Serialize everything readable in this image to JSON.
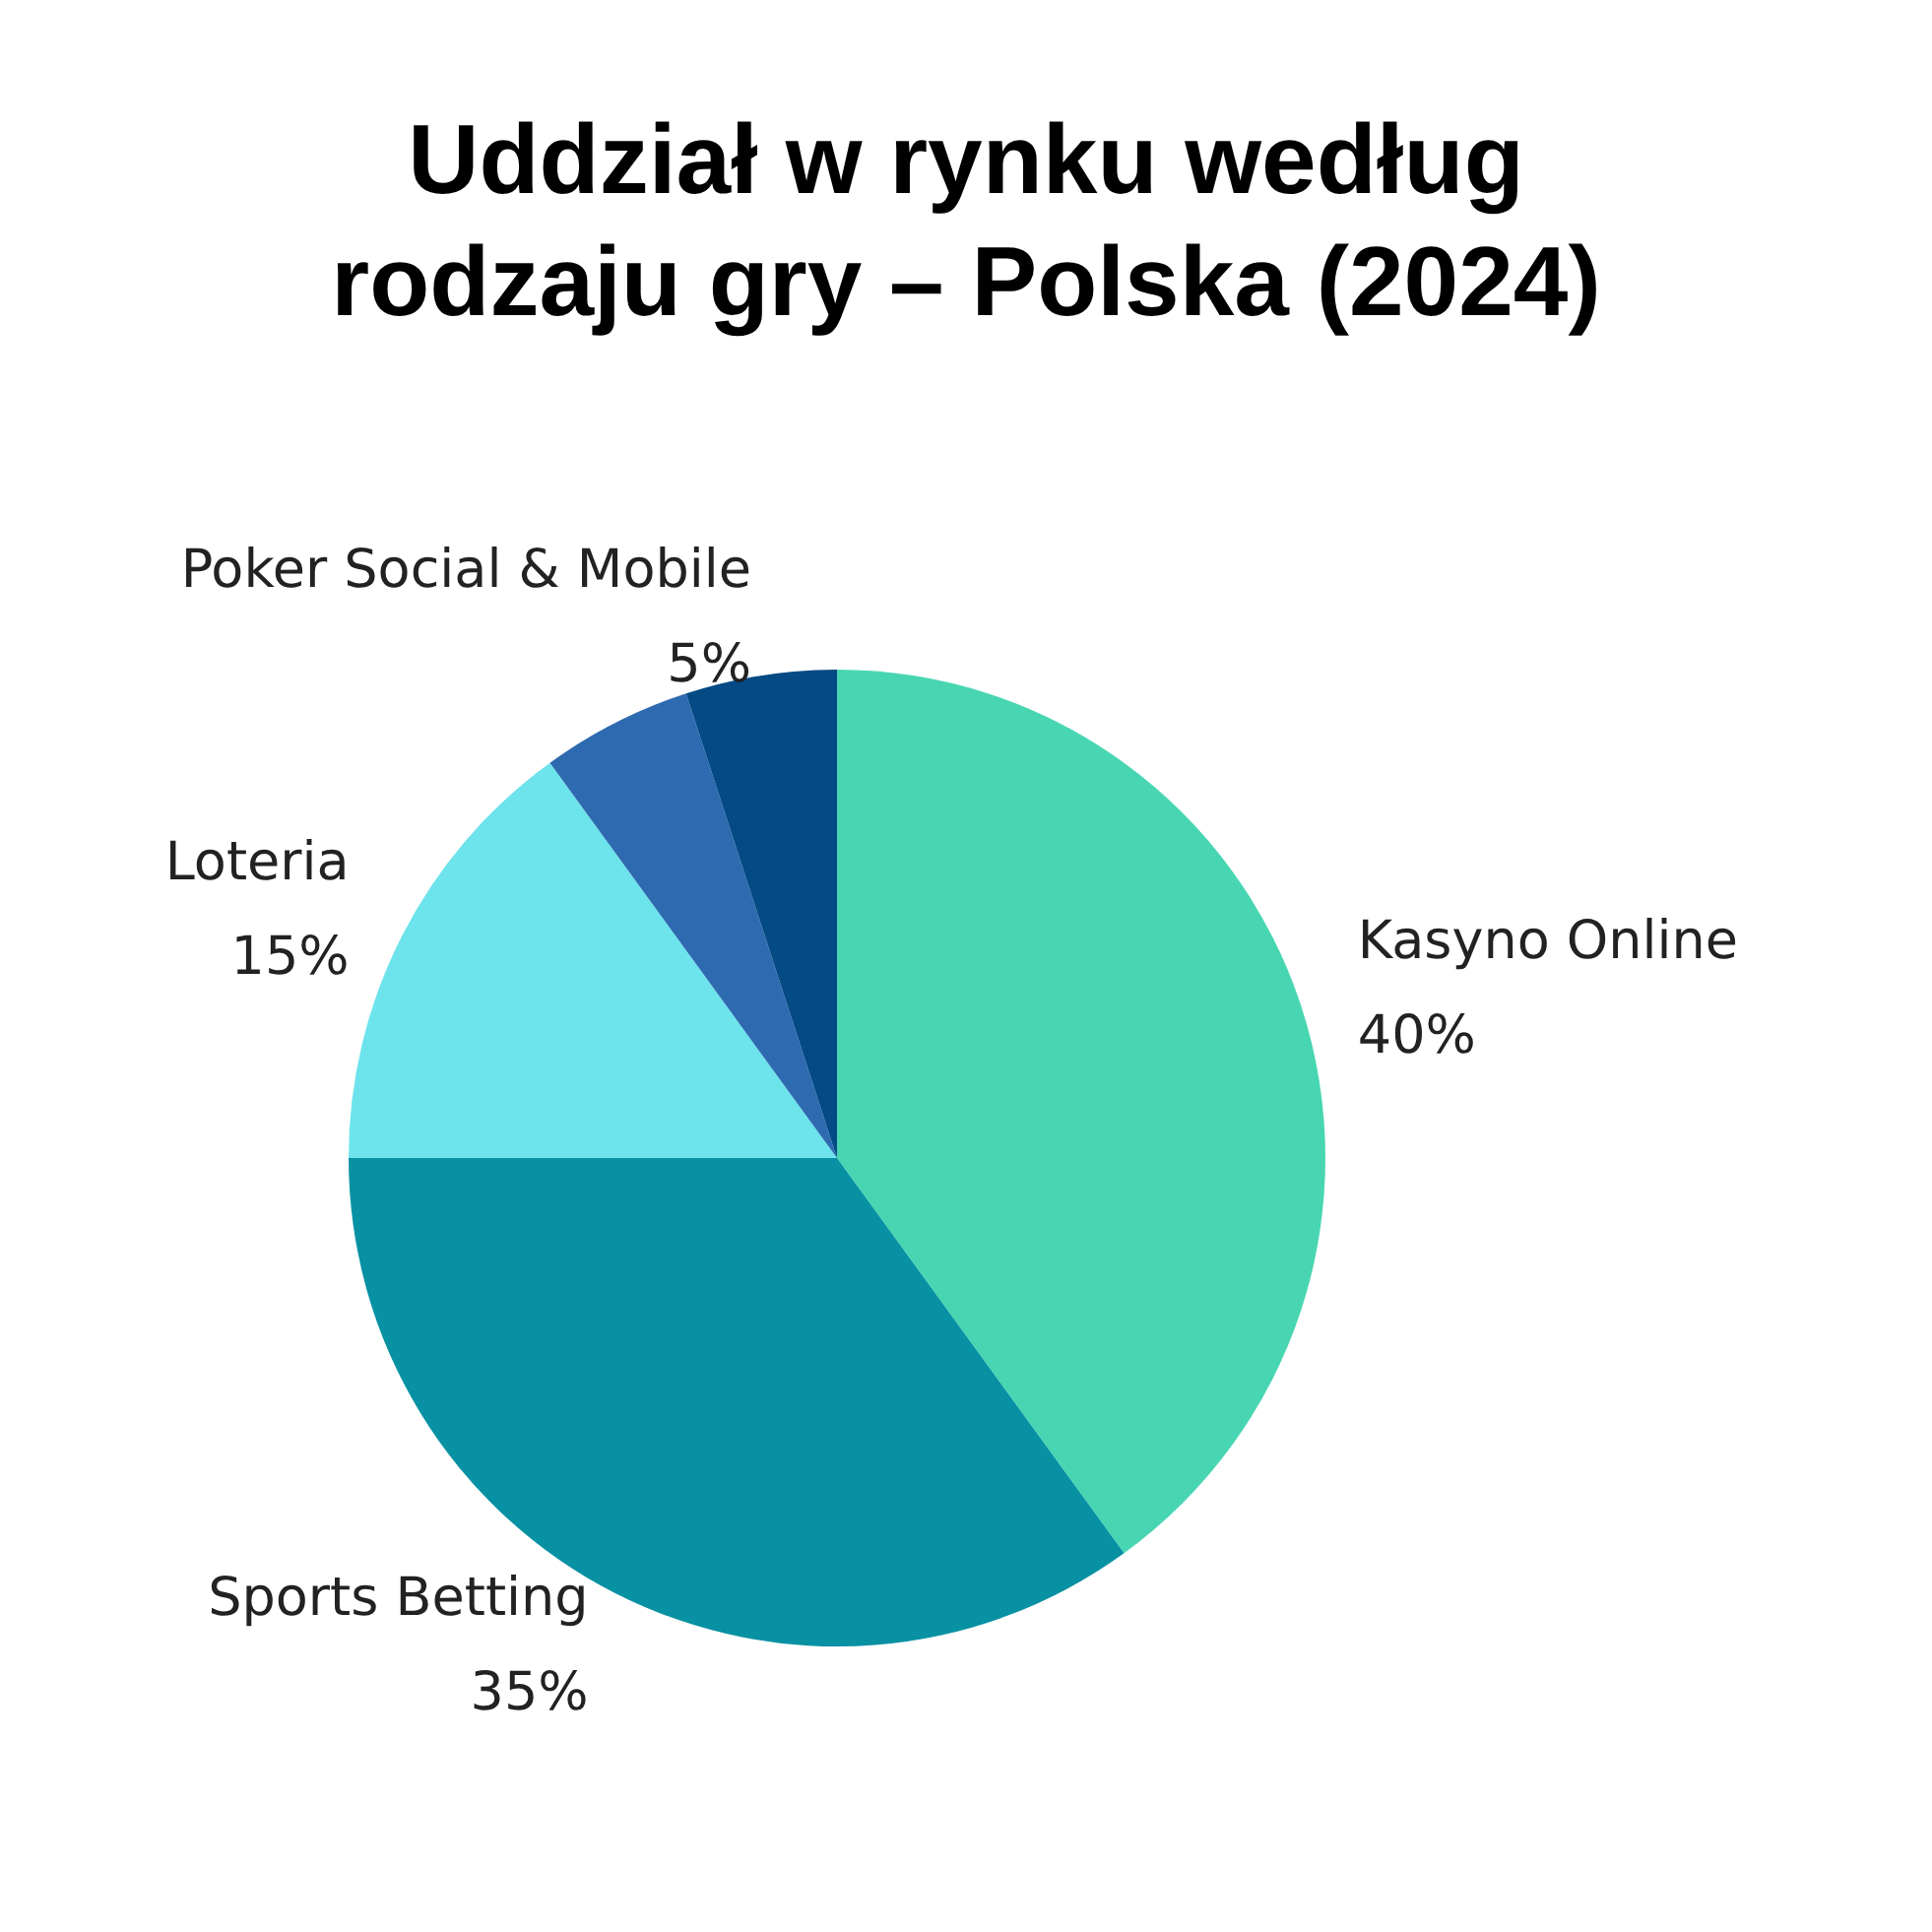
{
  "chart_data": {
    "type": "pie",
    "title": "Uddział w rynku według\nrodzaju gry – Polska (2024)",
    "categories": [
      "Kasyno Online",
      "Sports Betting",
      "Loteria",
      null,
      "Poker Social & Mobile"
    ],
    "values": [
      40,
      35,
      15,
      5,
      5
    ],
    "value_labels": [
      "40%",
      "35%",
      "15%",
      null,
      "5%"
    ],
    "colors": [
      "#48d6b2",
      "#0791a3",
      "#6de3ec",
      "#2e6ab0",
      "#044a84"
    ],
    "legend": false
  }
}
